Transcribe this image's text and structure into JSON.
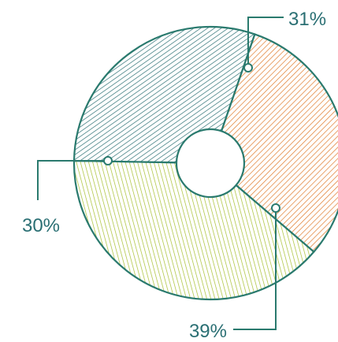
{
  "chart_data": {
    "type": "pie",
    "title": "",
    "slices": [
      {
        "label": "31%",
        "value": 31,
        "color": "#e07a2a"
      },
      {
        "label": "39%",
        "value": 39,
        "color": "#a7bf2e"
      },
      {
        "label": "30%",
        "value": 30,
        "color": "#2a6f73"
      }
    ],
    "donut": true,
    "outline_color": "#2a7a6e",
    "hatch_colors": [
      "#e07a2a",
      "#a7bf2e",
      "#2a6f73"
    ]
  }
}
